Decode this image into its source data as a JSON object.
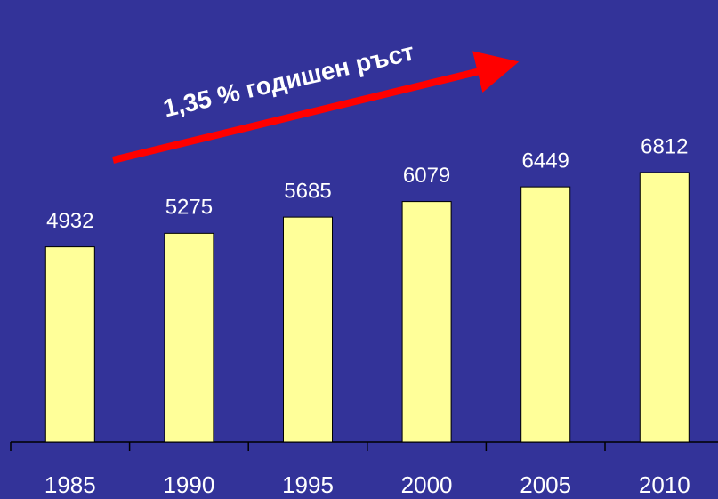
{
  "chart_data": {
    "type": "bar",
    "annotation": "1,35 % годишен ръст",
    "categories": [
      "1985",
      "1990",
      "1995",
      "2000",
      "2005",
      "2010"
    ],
    "values": [
      4932,
      5275,
      5685,
      6079,
      6449,
      6812
    ],
    "color": "#ffff99"
  }
}
